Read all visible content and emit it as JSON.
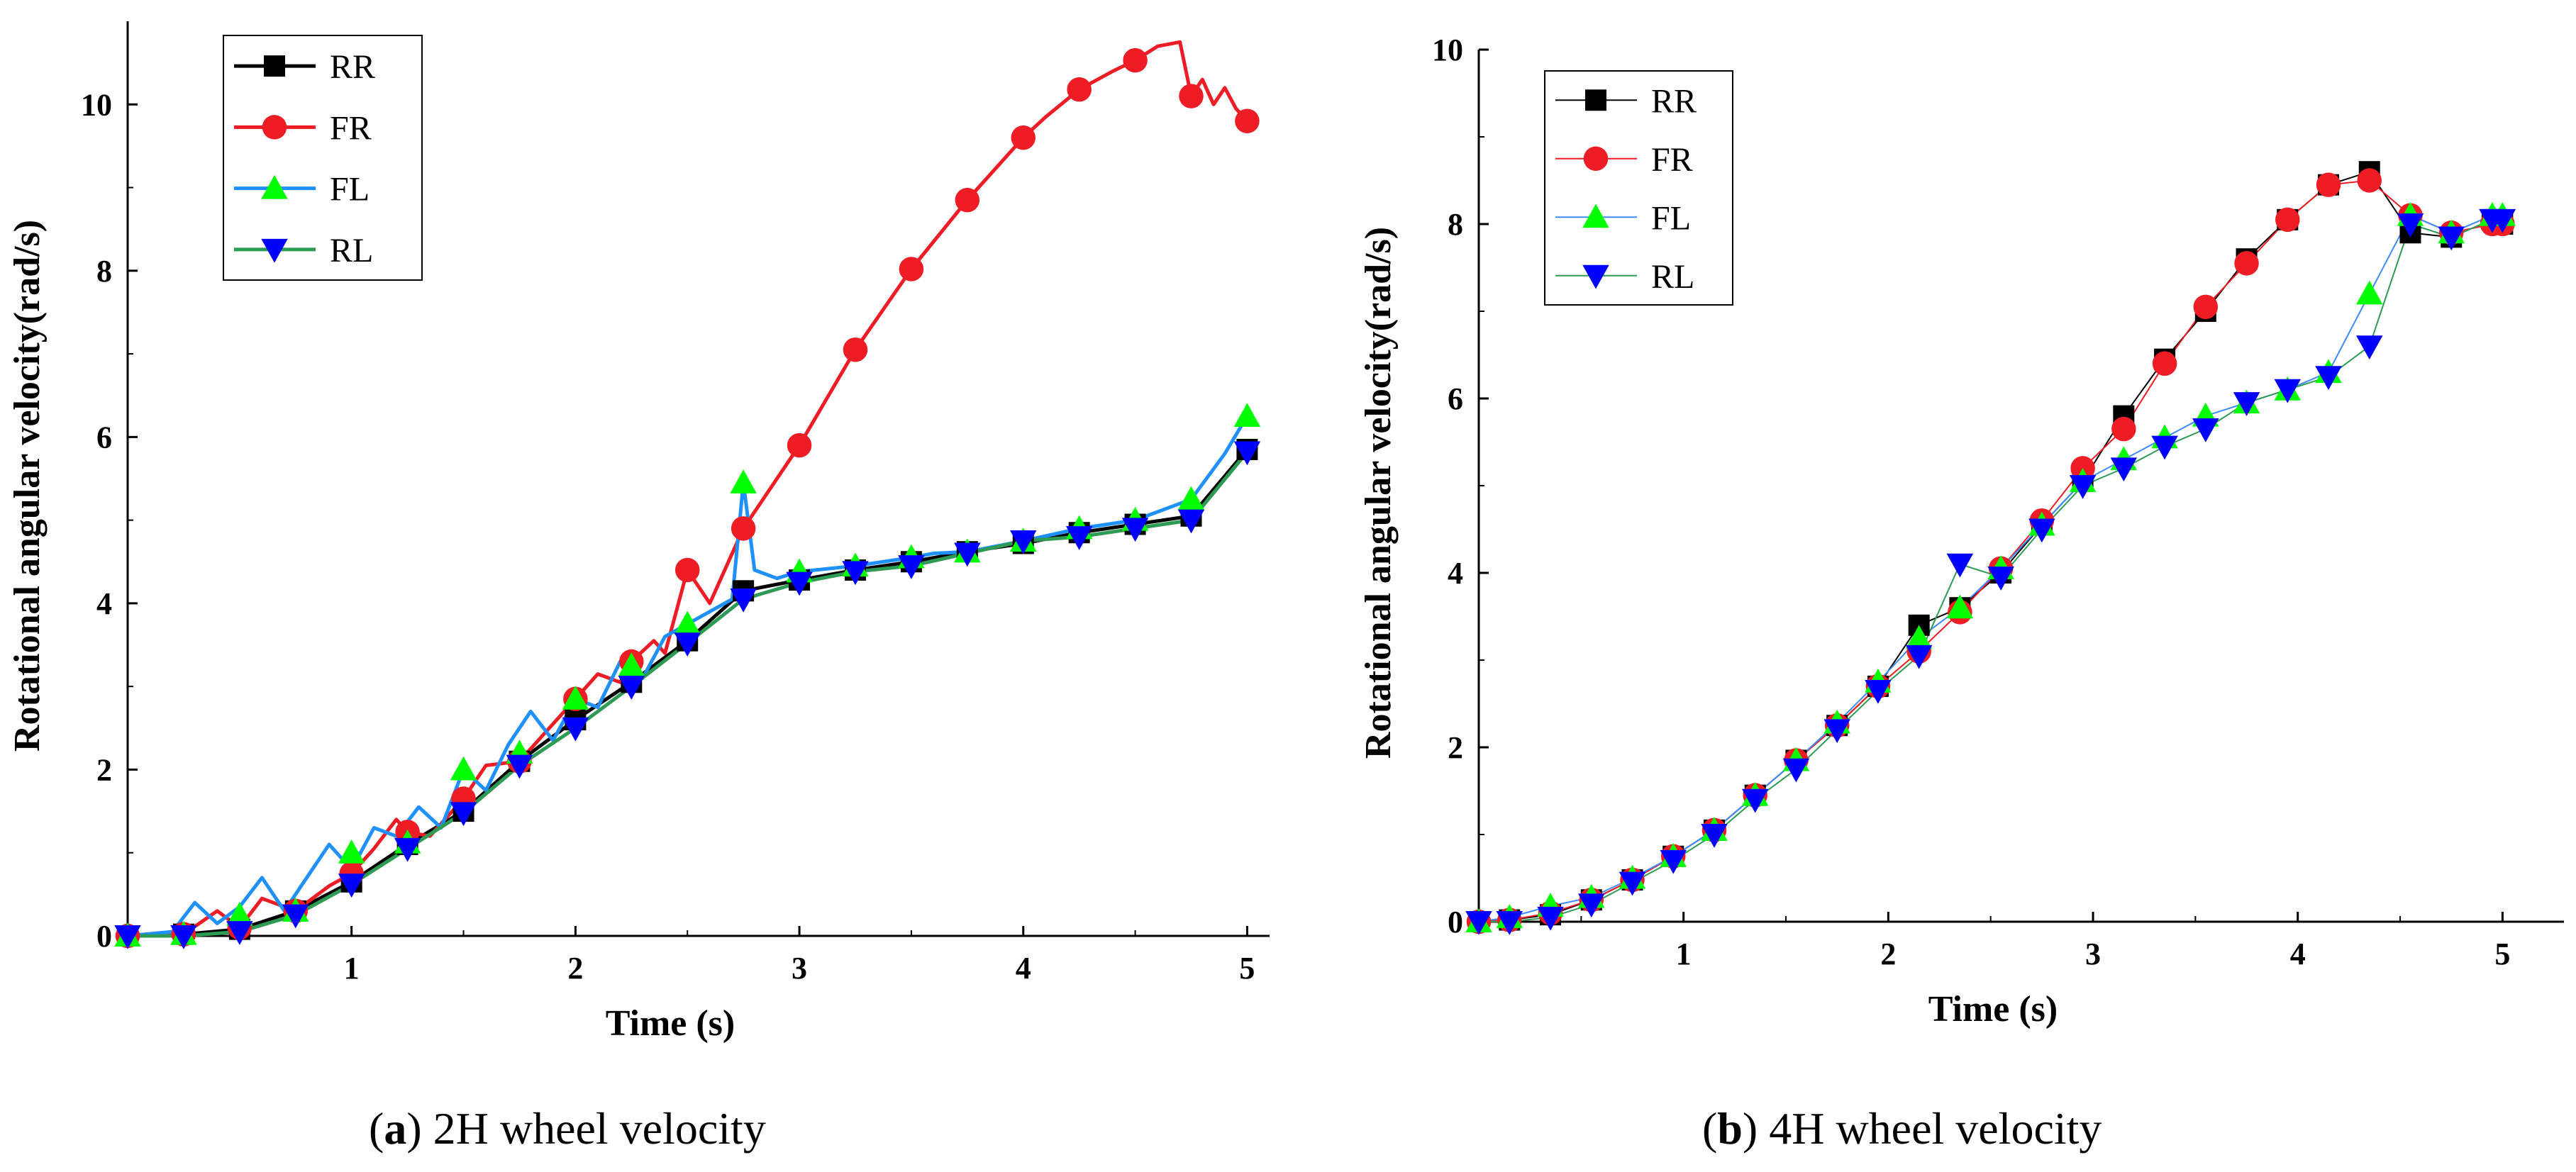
{
  "colors": {
    "RR": "#000000",
    "FR": "#ee1c24",
    "FL": "#1e90ff",
    "RL": "#2e9b55",
    "FL_marker": "#00ff00",
    "RL_marker": "#0000ff",
    "FR_marker": "#ee1c24",
    "RR_marker": "#000000",
    "b_FL_line": "#3c8cff",
    "b_RL_line": "#2e9b55"
  },
  "chart_data": [
    {
      "id": "a",
      "type": "line",
      "caption_letter": "a",
      "caption_text": " 2H wheel velocity",
      "title": "",
      "xlabel": "Time (s)",
      "ylabel": "Rotational angular velocity(rad/s)",
      "xlim": [
        0,
        5.1
      ],
      "ylim": [
        0,
        11
      ],
      "xticks": [
        1,
        2,
        3,
        4,
        5
      ],
      "yticks": [
        0,
        2,
        4,
        6,
        8,
        10
      ],
      "xtick_labels": [
        "1",
        "2",
        "3",
        "4",
        "5"
      ],
      "ytick_labels": [
        "0",
        "2",
        "4",
        "6",
        "8",
        "10"
      ],
      "legend_position": "top-left",
      "series": [
        {
          "name": "RR",
          "color": "#000000",
          "marker_color": "#000000",
          "marker": "square",
          "x": [
            0,
            0.25,
            0.5,
            0.75,
            1.0,
            1.25,
            1.5,
            1.75,
            2.0,
            2.25,
            2.5,
            2.75,
            3.0,
            3.25,
            3.5,
            3.75,
            4.0,
            4.25,
            4.5,
            4.75,
            5.0
          ],
          "y": [
            0.0,
            0.02,
            0.08,
            0.3,
            0.65,
            1.1,
            1.5,
            2.1,
            2.6,
            3.05,
            3.55,
            4.15,
            4.28,
            4.4,
            4.5,
            4.62,
            4.72,
            4.85,
            4.95,
            5.05,
            5.85
          ],
          "line_x": [],
          "line_y": []
        },
        {
          "name": "FR",
          "color": "#ee1c24",
          "marker_color": "#ee1c24",
          "marker": "circle",
          "x": [
            0,
            0.25,
            0.5,
            0.75,
            1.0,
            1.25,
            1.5,
            1.75,
            2.0,
            2.25,
            2.5,
            2.75,
            3.0,
            3.25,
            3.5,
            3.75,
            4.0,
            4.25,
            4.5,
            4.75,
            5.0
          ],
          "y": [
            0.0,
            0.02,
            0.1,
            0.3,
            0.75,
            1.25,
            1.65,
            2.1,
            2.85,
            3.3,
            4.4,
            4.9,
            5.9,
            7.05,
            8.02,
            8.85,
            9.6,
            10.18,
            10.53,
            10.1,
            9.8
          ],
          "line_x": [
            0,
            0.25,
            0.4,
            0.5,
            0.6,
            0.75,
            0.9,
            1.0,
            1.1,
            1.2,
            1.25,
            1.35,
            1.5,
            1.6,
            1.75,
            1.85,
            2.0,
            2.1,
            2.2,
            2.25,
            2.35,
            2.4,
            2.5,
            2.6,
            2.75,
            2.85,
            3.0,
            3.25,
            3.5,
            3.75,
            4.0,
            4.1,
            4.25,
            4.4,
            4.5,
            4.6,
            4.7,
            4.75,
            4.8,
            4.85,
            4.9,
            4.95,
            5.0
          ],
          "line_y": [
            0.0,
            0.02,
            0.3,
            0.1,
            0.45,
            0.3,
            0.6,
            0.75,
            1.05,
            1.4,
            1.25,
            1.2,
            1.65,
            2.05,
            2.1,
            2.4,
            2.85,
            3.15,
            3.05,
            3.3,
            3.55,
            3.4,
            4.4,
            4.0,
            4.9,
            5.3,
            5.9,
            7.05,
            8.02,
            8.85,
            9.6,
            9.85,
            10.18,
            10.4,
            10.53,
            10.7,
            10.75,
            10.1,
            10.3,
            10.0,
            10.2,
            9.95,
            9.8
          ]
        },
        {
          "name": "FL",
          "color": "#1e90ff",
          "marker_color": "#00ff00",
          "marker": "triangle-up",
          "x": [
            0,
            0.25,
            0.5,
            0.75,
            1.0,
            1.25,
            1.5,
            1.75,
            2.0,
            2.25,
            2.5,
            2.75,
            3.0,
            3.25,
            3.5,
            3.75,
            4.0,
            4.25,
            4.5,
            4.75,
            5.0
          ],
          "y": [
            0.0,
            0.02,
            0.25,
            0.3,
            1.0,
            1.12,
            2.0,
            2.2,
            2.85,
            3.25,
            3.75,
            5.45,
            4.38,
            4.45,
            4.55,
            4.62,
            4.75,
            4.9,
            5.0,
            5.25,
            6.25
          ],
          "line_x": [
            0,
            0.2,
            0.3,
            0.4,
            0.5,
            0.6,
            0.7,
            0.8,
            0.9,
            1.0,
            1.1,
            1.2,
            1.3,
            1.4,
            1.5,
            1.6,
            1.7,
            1.8,
            1.9,
            2.0,
            2.1,
            2.2,
            2.3,
            2.4,
            2.5,
            2.6,
            2.7,
            2.75,
            2.8,
            2.9,
            3.0,
            3.25,
            3.5,
            3.6,
            3.75,
            4.0,
            4.25,
            4.5,
            4.75,
            4.9,
            5.0
          ],
          "line_y": [
            0.0,
            0.05,
            0.4,
            0.15,
            0.35,
            0.7,
            0.3,
            0.7,
            1.1,
            0.8,
            1.3,
            1.2,
            1.55,
            1.3,
            2.0,
            1.75,
            2.3,
            2.7,
            2.35,
            2.85,
            2.75,
            3.3,
            3.1,
            3.6,
            3.75,
            3.9,
            4.05,
            5.45,
            4.4,
            4.3,
            4.38,
            4.45,
            4.55,
            4.6,
            4.62,
            4.75,
            4.9,
            5.0,
            5.25,
            5.8,
            6.25
          ]
        },
        {
          "name": "RL",
          "color": "#2e9b55",
          "marker_color": "#0000ff",
          "marker": "triangle-down",
          "x": [
            0,
            0.25,
            0.5,
            0.75,
            1.0,
            1.25,
            1.5,
            1.75,
            2.0,
            2.25,
            2.5,
            2.75,
            3.0,
            3.25,
            3.5,
            3.75,
            4.0,
            4.25,
            4.5,
            4.75,
            5.0
          ],
          "y": [
            0.0,
            0.0,
            0.05,
            0.25,
            0.62,
            1.05,
            1.48,
            2.05,
            2.5,
            3.0,
            3.52,
            4.05,
            4.25,
            4.38,
            4.45,
            4.6,
            4.75,
            4.8,
            4.9,
            5.0,
            5.82
          ],
          "line_x": [],
          "line_y": []
        }
      ]
    },
    {
      "id": "b",
      "type": "line",
      "caption_letter": "b",
      "caption_text": " 4H wheel velocity",
      "title": "",
      "xlabel": "Time (s)",
      "ylabel": "Rotational angular velocity(rad/s)",
      "xlim": [
        0,
        5.3
      ],
      "ylim": [
        0,
        10
      ],
      "xticks": [
        1,
        2,
        3,
        4,
        5
      ],
      "yticks": [
        0,
        2,
        4,
        6,
        8,
        10
      ],
      "xtick_labels": [
        "1",
        "2",
        "3",
        "4",
        "5"
      ],
      "ytick_labels": [
        "0",
        "2",
        "4",
        "6",
        "8",
        "10"
      ],
      "legend_position": "top-left",
      "series": [
        {
          "name": "RR",
          "color": "#000000",
          "marker_color": "#000000",
          "marker": "square",
          "x": [
            0,
            0.15,
            0.35,
            0.55,
            0.75,
            0.95,
            1.15,
            1.35,
            1.55,
            1.75,
            1.95,
            2.15,
            2.35,
            2.55,
            2.75,
            2.95,
            3.15,
            3.35,
            3.55,
            3.75,
            3.95,
            4.15,
            4.35,
            4.55,
            4.75,
            4.95,
            5.0
          ],
          "y": [
            0.0,
            0.02,
            0.08,
            0.25,
            0.48,
            0.75,
            1.05,
            1.45,
            1.85,
            2.25,
            2.7,
            3.4,
            3.6,
            4.0,
            4.55,
            5.05,
            5.8,
            6.45,
            7.0,
            7.6,
            8.05,
            8.45,
            8.6,
            7.9,
            7.85,
            8.05,
            8.0
          ]
        },
        {
          "name": "FR",
          "color": "#ee1c24",
          "marker_color": "#ee1c24",
          "marker": "circle",
          "x": [
            0,
            0.15,
            0.35,
            0.55,
            0.75,
            0.95,
            1.15,
            1.35,
            1.55,
            1.75,
            1.95,
            2.15,
            2.35,
            2.55,
            2.75,
            2.95,
            3.15,
            3.35,
            3.55,
            3.75,
            3.95,
            4.15,
            4.35,
            4.55,
            4.75,
            4.95,
            5.0
          ],
          "y": [
            0.0,
            0.02,
            0.1,
            0.25,
            0.48,
            0.75,
            1.05,
            1.45,
            1.85,
            2.25,
            2.7,
            3.1,
            3.55,
            4.05,
            4.6,
            5.2,
            5.65,
            6.4,
            7.05,
            7.55,
            8.05,
            8.45,
            8.5,
            8.1,
            7.9,
            8.0,
            8.0
          ]
        },
        {
          "name": "FL",
          "color": "#3c8cff",
          "marker_color": "#00ff00",
          "marker": "triangle-up",
          "x": [
            0,
            0.15,
            0.35,
            0.55,
            0.75,
            0.95,
            1.15,
            1.35,
            1.55,
            1.75,
            1.95,
            2.15,
            2.35,
            2.55,
            2.75,
            2.95,
            3.15,
            3.35,
            3.55,
            3.75,
            3.95,
            4.15,
            4.35,
            4.55,
            4.75,
            4.95,
            5.0
          ],
          "y": [
            0.0,
            0.05,
            0.18,
            0.28,
            0.5,
            0.75,
            1.05,
            1.45,
            1.85,
            2.28,
            2.75,
            3.25,
            3.6,
            4.05,
            4.55,
            5.05,
            5.3,
            5.55,
            5.8,
            5.95,
            6.1,
            6.3,
            7.2,
            8.1,
            7.9,
            8.1,
            8.1
          ]
        },
        {
          "name": "RL",
          "color": "#2e9b55",
          "marker_color": "#0000ff",
          "marker": "triangle-down",
          "x": [
            0,
            0.15,
            0.35,
            0.55,
            0.75,
            0.95,
            1.15,
            1.35,
            1.55,
            1.75,
            1.95,
            2.15,
            2.35,
            2.55,
            2.75,
            2.95,
            3.15,
            3.35,
            3.55,
            3.75,
            3.95,
            4.15,
            4.35,
            4.55,
            4.75,
            4.95,
            5.0
          ],
          "y": [
            0.0,
            0.0,
            0.05,
            0.2,
            0.45,
            0.7,
            1.0,
            1.4,
            1.75,
            2.2,
            2.65,
            3.05,
            4.1,
            3.95,
            4.5,
            5.0,
            5.2,
            5.45,
            5.65,
            5.95,
            6.1,
            6.25,
            6.6,
            8.0,
            7.85,
            8.05,
            8.05
          ]
        }
      ]
    }
  ]
}
